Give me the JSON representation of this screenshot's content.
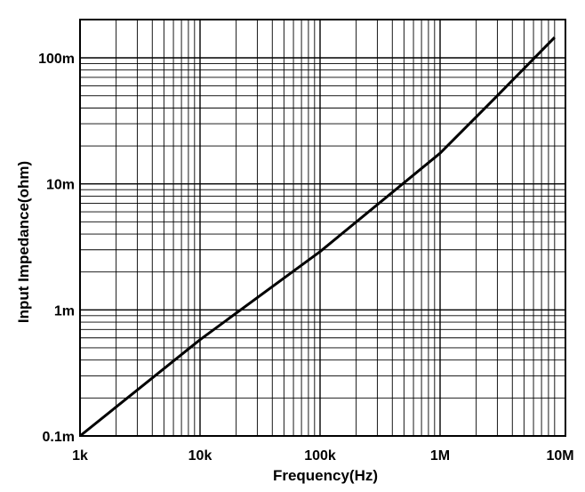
{
  "chart_data": {
    "type": "line",
    "title": "",
    "xlabel": "Frequency(Hz)",
    "ylabel": "Input Impedance(ohm)",
    "x_scale": "log",
    "y_scale": "log",
    "xlim": [
      1000,
      10000000
    ],
    "ylim": [
      0.0001,
      0.2
    ],
    "grid": true,
    "legend": "none",
    "line_color": "#000000",
    "grid_color": "#000000",
    "x_ticks": [
      {
        "value": 1000,
        "label": "1k"
      },
      {
        "value": 10000,
        "label": "10k"
      },
      {
        "value": 100000,
        "label": "100k"
      },
      {
        "value": 1000000,
        "label": "1M"
      },
      {
        "value": 10000000,
        "label": "10M"
      }
    ],
    "y_ticks": [
      {
        "value": 0.0001,
        "label": "0.1m"
      },
      {
        "value": 0.001,
        "label": "1m"
      },
      {
        "value": 0.01,
        "label": "10m"
      },
      {
        "value": 0.1,
        "label": "100m"
      }
    ],
    "series": [
      {
        "x": [
          1000,
          10000,
          100000,
          1000000,
          3000000,
          9000000
        ],
        "y": [
          0.0001,
          0.00058,
          0.0029,
          0.0175,
          0.05,
          0.145
        ]
      }
    ]
  }
}
